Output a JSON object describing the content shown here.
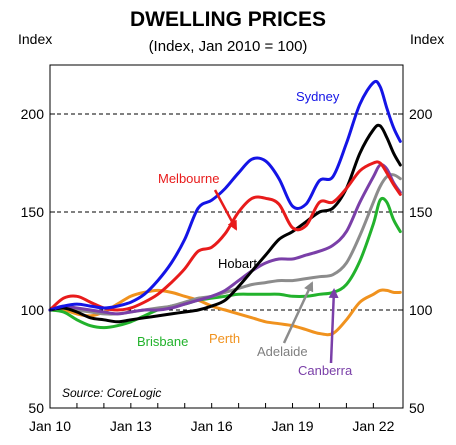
{
  "chart_data": {
    "type": "line",
    "title": "DWELLING PRICES",
    "subtitle": "(Index, Jan 2010 = 100)",
    "y_axis_label_left": "Index",
    "y_axis_label_right": "Index",
    "source": "Source: CoreLogic",
    "x_tick_labels": [
      "Jan 10",
      "Jan 13",
      "Jan 16",
      "Jan 19",
      "Jan 22"
    ],
    "x_ticks": [
      2010,
      2013,
      2016,
      2019,
      2022
    ],
    "xlim": [
      2010,
      2023.1
    ],
    "ylim": [
      50,
      225
    ],
    "y_ticks": [
      50,
      100,
      150,
      200
    ],
    "grid_lines_at": [
      100,
      150,
      200
    ],
    "dates": [
      2010.0,
      2010.5,
      2011.0,
      2011.5,
      2012.0,
      2012.5,
      2013.0,
      2013.5,
      2014.0,
      2014.5,
      2015.0,
      2015.5,
      2016.0,
      2016.5,
      2017.0,
      2017.5,
      2018.0,
      2018.5,
      2019.0,
      2019.5,
      2020.0,
      2020.5,
      2021.0,
      2021.5,
      2022.0,
      2022.25,
      2022.5,
      2022.75,
      2023.0
    ],
    "series": [
      {
        "name": "Sydney",
        "color": "#1414e6",
        "values": [
          100,
          102,
          103,
          102,
          101,
          102,
          104,
          108,
          115,
          124,
          136,
          152,
          156,
          162,
          170,
          177,
          176,
          167,
          153,
          154,
          166,
          168,
          185,
          205,
          216,
          214,
          203,
          193,
          186
        ]
      },
      {
        "name": "Melbourne",
        "color": "#e81b1b",
        "values": [
          100,
          106,
          107,
          104,
          101,
          100,
          101,
          104,
          108,
          114,
          121,
          130,
          132,
          139,
          150,
          157,
          157,
          154,
          142,
          143,
          155,
          155,
          162,
          171,
          175,
          175,
          170,
          164,
          159
        ]
      },
      {
        "name": "Hobart",
        "color": "#000000",
        "values": [
          100,
          101,
          99,
          96,
          95,
          94,
          95,
          96,
          97,
          98,
          99,
          100,
          102,
          105,
          112,
          120,
          128,
          136,
          140,
          145,
          150,
          152,
          162,
          180,
          192,
          194,
          188,
          180,
          174
        ]
      },
      {
        "name": "Adelaide",
        "color": "#8c8c8c",
        "values": [
          100,
          101,
          100,
          99,
          98,
          98,
          99,
          100,
          101,
          102,
          104,
          106,
          107,
          109,
          111,
          113,
          114,
          115,
          115,
          116,
          117,
          118,
          124,
          138,
          155,
          163,
          168,
          169,
          167
        ]
      },
      {
        "name": "Canberra",
        "color": "#7a3fa8",
        "values": [
          100,
          102,
          101,
          100,
          99,
          98,
          99,
          100,
          100,
          101,
          103,
          105,
          107,
          110,
          115,
          120,
          124,
          126,
          126,
          128,
          130,
          133,
          140,
          155,
          168,
          174,
          172,
          165,
          160
        ]
      },
      {
        "name": "Brisbane",
        "color": "#22b22c",
        "values": [
          100,
          99,
          95,
          92,
          91,
          92,
          94,
          97,
          100,
          102,
          103,
          105,
          106,
          107,
          108,
          108,
          108,
          108,
          107,
          107,
          108,
          109,
          113,
          125,
          144,
          156,
          155,
          146,
          140
        ]
      },
      {
        "name": "Perth",
        "color": "#f0921e",
        "values": [
          100,
          100,
          98,
          97,
          99,
          103,
          107,
          109,
          110,
          109,
          107,
          105,
          102,
          100,
          98,
          96,
          94,
          93,
          92,
          90,
          88,
          88,
          95,
          104,
          108,
          110,
          110,
          109,
          109
        ]
      }
    ]
  }
}
